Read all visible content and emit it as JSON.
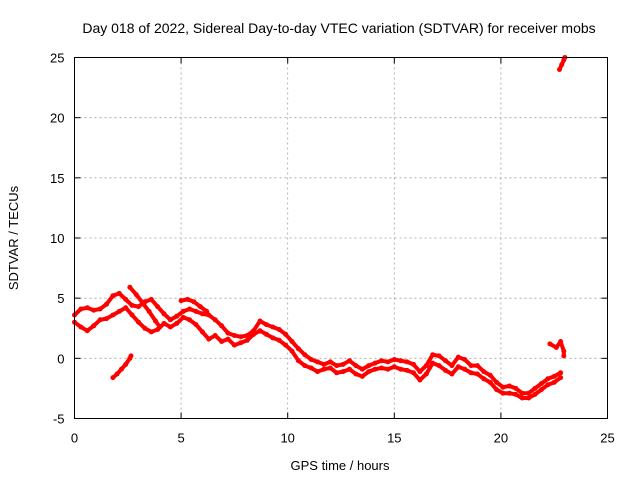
{
  "chart_data": {
    "type": "scatter",
    "title": "Day 018 of 2022, Sidereal Day-to-day VTEC variation (SDTVAR) for receiver mobs",
    "xlabel": "GPS time / hours",
    "ylabel": "SDTVAR / TECUs",
    "xlim": [
      0,
      25
    ],
    "ylim": [
      -5,
      25
    ],
    "xticks": [
      0,
      5,
      10,
      15,
      20,
      25
    ],
    "yticks": [
      -5,
      0,
      5,
      10,
      15,
      20,
      25
    ],
    "grid": true,
    "series_color": "#ff0000",
    "series": [
      {
        "name": "upper-track",
        "points": [
          [
            0.0,
            3.6
          ],
          [
            0.3,
            4.1
          ],
          [
            0.6,
            4.2
          ],
          [
            0.9,
            4.0
          ],
          [
            1.2,
            4.1
          ],
          [
            1.5,
            4.5
          ],
          [
            1.8,
            5.2
          ],
          [
            2.1,
            5.4
          ],
          [
            2.4,
            4.9
          ],
          [
            2.7,
            4.4
          ],
          [
            3.0,
            4.3
          ],
          [
            3.3,
            4.7
          ],
          [
            3.6,
            4.9
          ],
          [
            3.9,
            4.3
          ],
          [
            4.2,
            3.7
          ],
          [
            4.5,
            3.2
          ],
          [
            4.8,
            3.5
          ],
          [
            5.1,
            3.9
          ],
          [
            5.4,
            4.1
          ],
          [
            5.7,
            3.9
          ],
          [
            6.0,
            3.7
          ],
          [
            6.3,
            3.6
          ],
          [
            6.6,
            3.2
          ],
          [
            6.9,
            2.7
          ],
          [
            7.2,
            2.1
          ],
          [
            7.5,
            1.9
          ],
          [
            7.8,
            1.8
          ],
          [
            8.1,
            1.9
          ],
          [
            8.4,
            2.3
          ],
          [
            8.7,
            3.1
          ],
          [
            9.0,
            2.8
          ],
          [
            9.3,
            2.6
          ],
          [
            9.6,
            2.4
          ],
          [
            9.9,
            2.0
          ],
          [
            10.2,
            1.4
          ],
          [
            10.5,
            0.8
          ],
          [
            10.8,
            0.3
          ],
          [
            11.1,
            -0.1
          ],
          [
            11.4,
            -0.3
          ],
          [
            11.7,
            -0.5
          ],
          [
            12.0,
            -0.3
          ],
          [
            12.3,
            -0.6
          ],
          [
            12.6,
            -0.5
          ],
          [
            12.9,
            -0.2
          ],
          [
            13.2,
            -0.6
          ],
          [
            13.5,
            -0.9
          ],
          [
            13.8,
            -0.6
          ],
          [
            14.1,
            -0.4
          ],
          [
            14.4,
            -0.2
          ],
          [
            14.7,
            -0.3
          ],
          [
            15.0,
            -0.1
          ],
          [
            15.3,
            -0.2
          ],
          [
            15.6,
            -0.3
          ],
          [
            15.9,
            -0.5
          ],
          [
            16.2,
            -1.1
          ],
          [
            16.5,
            -0.6
          ],
          [
            16.8,
            0.3
          ],
          [
            17.1,
            0.2
          ],
          [
            17.4,
            -0.2
          ],
          [
            17.7,
            -0.6
          ],
          [
            18.0,
            0.1
          ],
          [
            18.3,
            -0.1
          ],
          [
            18.6,
            -0.6
          ],
          [
            18.9,
            -0.6
          ],
          [
            19.2,
            -1.1
          ],
          [
            19.5,
            -1.4
          ],
          [
            19.8,
            -2.0
          ],
          [
            20.1,
            -2.4
          ],
          [
            20.4,
            -2.3
          ],
          [
            20.7,
            -2.5
          ],
          [
            21.0,
            -2.9
          ],
          [
            21.3,
            -2.9
          ],
          [
            21.6,
            -2.5
          ],
          [
            21.9,
            -2.1
          ],
          [
            22.2,
            -1.7
          ],
          [
            22.5,
            -1.5
          ],
          [
            22.8,
            -1.2
          ]
        ]
      },
      {
        "name": "lower-track",
        "points": [
          [
            0.0,
            3.0
          ],
          [
            0.3,
            2.6
          ],
          [
            0.6,
            2.3
          ],
          [
            0.9,
            2.7
          ],
          [
            1.2,
            3.2
          ],
          [
            1.5,
            3.3
          ],
          [
            1.8,
            3.6
          ],
          [
            2.1,
            3.9
          ],
          [
            2.4,
            4.2
          ],
          [
            2.7,
            3.6
          ],
          [
            3.0,
            3.0
          ],
          [
            3.3,
            2.5
          ],
          [
            3.6,
            2.2
          ],
          [
            3.9,
            2.4
          ],
          [
            4.2,
            2.9
          ],
          [
            4.5,
            2.6
          ],
          [
            4.8,
            2.9
          ],
          [
            5.1,
            3.4
          ],
          [
            5.4,
            3.2
          ],
          [
            5.7,
            2.8
          ],
          [
            6.0,
            2.2
          ],
          [
            6.3,
            1.6
          ],
          [
            6.6,
            1.9
          ],
          [
            6.9,
            1.4
          ],
          [
            7.2,
            1.6
          ],
          [
            7.5,
            1.1
          ],
          [
            7.8,
            1.3
          ],
          [
            8.1,
            1.5
          ],
          [
            8.4,
            2.0
          ],
          [
            8.7,
            2.3
          ],
          [
            9.0,
            2.0
          ],
          [
            9.3,
            1.7
          ],
          [
            9.6,
            1.5
          ],
          [
            9.9,
            1.1
          ],
          [
            10.2,
            0.6
          ],
          [
            10.5,
            -0.2
          ],
          [
            10.8,
            -0.6
          ],
          [
            11.1,
            -0.8
          ],
          [
            11.4,
            -1.1
          ],
          [
            11.7,
            -0.9
          ],
          [
            12.0,
            -0.8
          ],
          [
            12.3,
            -1.2
          ],
          [
            12.6,
            -1.1
          ],
          [
            12.9,
            -0.9
          ],
          [
            13.2,
            -1.3
          ],
          [
            13.5,
            -1.5
          ],
          [
            13.8,
            -1.1
          ],
          [
            14.1,
            -0.9
          ],
          [
            14.4,
            -0.8
          ],
          [
            14.7,
            -0.9
          ],
          [
            15.0,
            -0.7
          ],
          [
            15.3,
            -0.9
          ],
          [
            15.6,
            -1.0
          ],
          [
            15.9,
            -1.2
          ],
          [
            16.2,
            -1.8
          ],
          [
            16.5,
            -1.3
          ],
          [
            16.8,
            -0.4
          ],
          [
            17.1,
            -0.6
          ],
          [
            17.4,
            -1.0
          ],
          [
            17.7,
            -1.3
          ],
          [
            18.0,
            -0.7
          ],
          [
            18.3,
            -0.9
          ],
          [
            18.6,
            -1.2
          ],
          [
            18.9,
            -1.3
          ],
          [
            19.2,
            -1.7
          ],
          [
            19.5,
            -2.0
          ],
          [
            19.8,
            -2.6
          ],
          [
            20.1,
            -2.9
          ],
          [
            20.4,
            -2.9
          ],
          [
            20.7,
            -3.0
          ],
          [
            21.0,
            -3.3
          ],
          [
            21.3,
            -3.3
          ],
          [
            21.6,
            -3.0
          ],
          [
            21.9,
            -2.6
          ],
          [
            22.2,
            -2.2
          ],
          [
            22.5,
            -2.0
          ],
          [
            22.8,
            -1.6
          ]
        ]
      },
      {
        "name": "short-arc-early",
        "points": [
          [
            1.8,
            -1.6
          ],
          [
            2.0,
            -1.3
          ],
          [
            2.2,
            -0.9
          ],
          [
            2.4,
            -0.5
          ],
          [
            2.6,
            0.0
          ],
          [
            2.65,
            0.2
          ]
        ]
      },
      {
        "name": "short-arc-peak",
        "points": [
          [
            2.6,
            5.9
          ],
          [
            2.9,
            5.3
          ],
          [
            3.2,
            4.6
          ],
          [
            3.5,
            3.9
          ],
          [
            3.8,
            3.1
          ],
          [
            4.0,
            2.6
          ]
        ]
      },
      {
        "name": "short-arc-midday",
        "points": [
          [
            5.0,
            4.8
          ],
          [
            5.3,
            4.9
          ],
          [
            5.6,
            4.7
          ],
          [
            5.9,
            4.3
          ],
          [
            6.2,
            3.9
          ]
        ]
      },
      {
        "name": "short-arc-late",
        "points": [
          [
            22.3,
            1.2
          ],
          [
            22.6,
            0.9
          ],
          [
            22.8,
            1.4
          ],
          [
            22.95,
            0.6
          ],
          [
            22.95,
            0.2
          ]
        ]
      },
      {
        "name": "short-arc-outlier",
        "points": [
          [
            22.75,
            24.0
          ],
          [
            22.85,
            24.4
          ],
          [
            22.95,
            24.8
          ],
          [
            23.0,
            25.0
          ]
        ]
      }
    ]
  }
}
